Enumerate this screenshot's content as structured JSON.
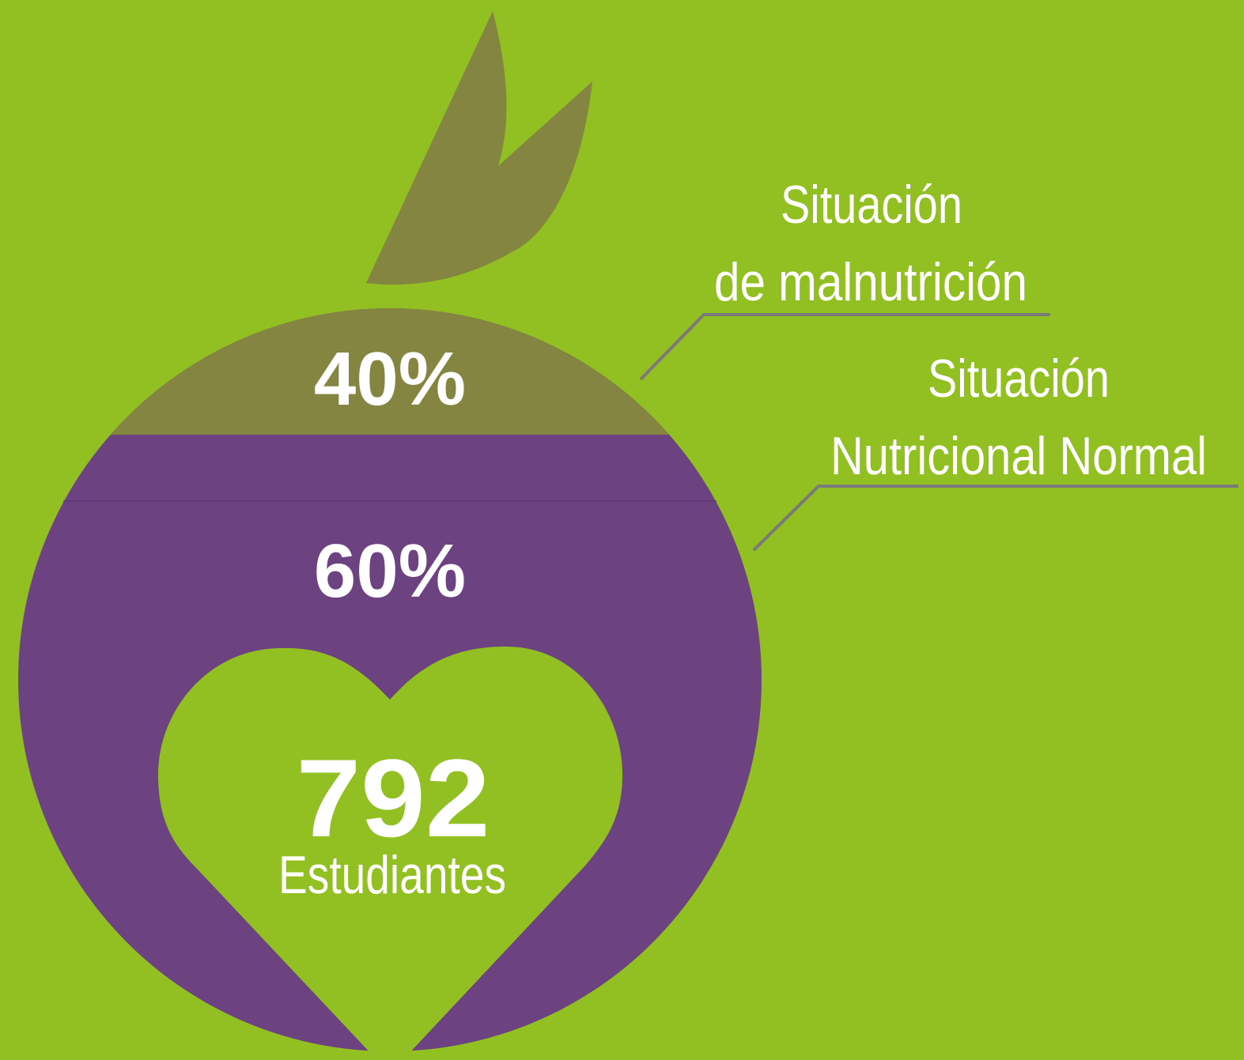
{
  "segments": [
    {
      "percent": "40%",
      "label": [
        "Situación",
        "de malnutrición"
      ]
    },
    {
      "percent": "60%",
      "label": [
        "Situación",
        "Nutricional Normal"
      ]
    }
  ],
  "total": {
    "number": "792",
    "label": "Estudiantes"
  }
}
